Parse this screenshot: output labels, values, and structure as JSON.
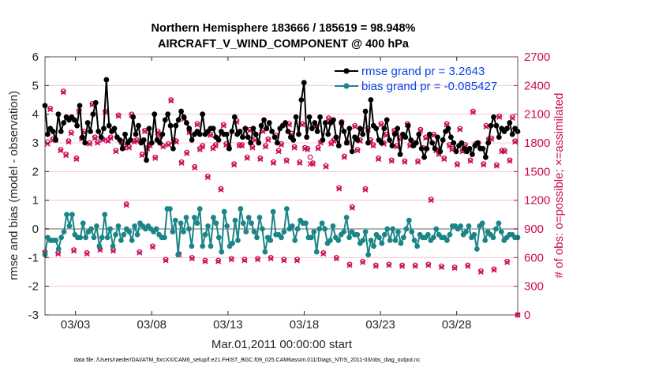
{
  "chart_data": {
    "type": "line",
    "title": "Northern Hemisphere 183666 / 185619 = 98.948%",
    "subtitle": "AIRCRAFT_V_WIND_COMPONENT @ 400 hPa",
    "xlabel": "Mar.01,2011 00:00:00 start",
    "ylabel": "rmse and bias (model - observation)",
    "y2label": "# of obs: o=possible; ×=assimilated",
    "xlim": [
      1.0,
      32.0
    ],
    "ylim": [
      -3,
      6
    ],
    "y2lim": [
      0,
      2700
    ],
    "xticks": [
      3,
      8,
      13,
      18,
      23,
      28
    ],
    "xtick_labels": [
      "03/03",
      "03/08",
      "03/13",
      "03/18",
      "03/23",
      "03/28"
    ],
    "yticks": [
      -3,
      -2,
      -1,
      0,
      1,
      2,
      3,
      4,
      5,
      6
    ],
    "ytick_labels": [
      "-3",
      "-2",
      "-1",
      "0",
      "1",
      "2",
      "3",
      "4",
      "5",
      "6"
    ],
    "y2ticks": [
      0,
      300,
      600,
      900,
      1200,
      1500,
      1800,
      2100,
      2400,
      2700
    ],
    "y2tick_labels": [
      "0",
      "300",
      "600",
      "900",
      "1200",
      "1500",
      "1800",
      "2100",
      "2400",
      "2700"
    ],
    "legend_position": "top-right",
    "series": [
      {
        "name": "rmse grand pr = 3.2643",
        "color": "#000000",
        "axis": "left",
        "values": [
          4.3,
          3.3,
          3.5,
          3.4,
          3.1,
          4.0,
          3.4,
          3.7,
          3.9,
          3.8,
          3.9,
          3.8,
          3.6,
          4.3,
          3.2,
          3.0,
          3.7,
          3.4,
          4.0,
          4.4,
          3.4,
          3.2,
          3.5,
          5.2,
          3.6,
          3.4,
          3.5,
          3.2,
          3.1,
          2.8,
          3.3,
          3.0,
          3.1,
          3.9,
          3.3,
          3.6,
          3.0,
          3.1,
          2.4,
          3.5,
          3.0,
          4.0,
          3.1,
          3.0,
          3.3,
          3.8,
          4.0,
          3.6,
          2.8,
          3.6,
          3.8,
          4.1,
          3.9,
          3.7,
          3.5,
          3.1,
          3.3,
          3.4,
          3.3,
          4.0,
          3.3,
          3.4,
          3.5,
          3.5,
          3.2,
          3.1,
          3.4,
          3.3,
          3.3,
          2.8,
          3.4,
          3.9,
          3.3,
          3.4,
          3.2,
          3.5,
          3.2,
          3.0,
          3.5,
          3.3,
          3.0,
          3.6,
          3.8,
          3.5,
          3.7,
          3.4,
          3.2,
          3.0,
          3.5,
          3.6,
          3.7,
          3.4,
          3.2,
          3.1,
          3.9,
          3.3,
          4.5,
          5.1,
          3.2,
          3.9,
          3.5,
          3.7,
          3.4,
          3.9,
          3.1,
          3.7,
          3.3,
          3.7,
          3.8,
          3.2,
          2.9,
          3.7,
          3.4,
          3.0,
          3.5,
          2.7,
          3.2,
          3.1,
          3.5,
          3.3,
          4.1,
          3.0,
          4.5,
          3.6,
          3.5,
          3.1,
          3.0,
          3.5,
          3.8,
          3.1,
          2.9,
          3.3,
          3.5,
          2.6,
          3.3,
          3.2,
          3.6,
          3.1,
          2.9,
          3.0,
          3.3,
          2.8,
          2.5,
          2.8,
          3.3,
          3.0,
          2.8,
          3.2,
          2.7,
          3.1,
          3.4,
          3.5,
          3.2,
          3.0,
          2.7,
          2.9,
          3.0,
          2.8,
          2.7,
          2.8,
          2.6,
          2.9,
          3.0,
          2.8,
          2.8,
          2.5,
          3.0,
          3.6,
          3.9,
          3.6,
          3.2,
          3.5,
          3.4,
          3.5,
          3.7,
          3.3,
          3.5,
          3.4
        ]
      },
      {
        "name": "bias grand pr = -0.085427",
        "color": "#1a8587",
        "axis": "left",
        "values": [
          -0.9,
          -0.3,
          -0.4,
          -0.4,
          -0.4,
          -0.7,
          -0.3,
          -0.1,
          0.5,
          0.1,
          0.5,
          -0.2,
          -0.3,
          -0.3,
          0.2,
          -0.3,
          -0.1,
          0.0,
          -0.3,
          0.1,
          -0.6,
          -0.3,
          0.5,
          -0.3,
          0.0,
          -0.6,
          -0.2,
          0.1,
          -0.4,
          -0.2,
          0.0,
          -0.1,
          -0.4,
          0.1,
          -0.2,
          0.2,
          0.1,
          0.0,
          0.1,
          0.0,
          -0.1,
          0.0,
          -0.2,
          -0.3,
          -0.3,
          0.7,
          0.7,
          -0.1,
          0.3,
          -0.9,
          0.2,
          -0.1,
          0.4,
          0.0,
          -0.6,
          0.4,
          0.2,
          0.7,
          -0.6,
          -0.2,
          0.1,
          -0.6,
          0.4,
          0.2,
          -0.3,
          -0.8,
          0.6,
          0.1,
          -0.6,
          -0.5,
          0.3,
          -0.4,
          0.7,
          0.2,
          -0.1,
          0.4,
          0.2,
          -0.1,
          -0.3,
          0.4,
          0.0,
          -0.8,
          -0.3,
          -0.4,
          0.6,
          -0.2,
          -0.2,
          -0.3,
          -0.1,
          0.7,
          0.0,
          0.1,
          -0.4,
          0.0,
          0.3,
          0.2,
          0.2,
          -0.3,
          -0.3,
          -0.1,
          -0.8,
          0.0,
          0.2,
          0.0,
          -0.5,
          -0.4,
          0.1,
          -0.3,
          -0.4,
          -0.2,
          -0.1,
          0.4,
          -0.3,
          -0.1,
          -0.2,
          -0.2,
          -0.5,
          -0.4,
          -0.1,
          -0.9,
          -0.4,
          -0.6,
          -0.2,
          -0.3,
          -0.5,
          -0.2,
          0.0,
          -0.4,
          0.0,
          -0.4,
          -0.1,
          -0.5,
          -0.3,
          0.0,
          0.3,
          -0.1,
          -0.4,
          -0.6,
          -0.2,
          -0.3,
          -0.3,
          -0.2,
          -0.4,
          -0.3,
          0.0,
          -0.2,
          -0.3,
          -0.3,
          -0.4,
          -0.2,
          0.1,
          0.1,
          0.0,
          0.1,
          -0.2,
          -0.1,
          0.1,
          -0.3,
          -0.2,
          -0.7,
          0.1,
          0.2,
          -0.4,
          -0.1,
          -0.2,
          -0.3,
          0.0,
          0.2,
          -0.1,
          -0.4,
          -0.3,
          -0.2,
          -0.2,
          -0.3,
          -0.3
        ]
      },
      {
        "name": "possible",
        "color": "#cc0a55",
        "axis": "right",
        "values": [
          660,
          1810,
          2160,
          1840,
          1840,
          650,
          1730,
          2340,
          1680,
          1820,
          1910,
          680,
          1640,
          2140,
          1850,
          1920,
          650,
          1800,
          2210,
          1860,
          1810,
          690,
          1840,
          2130,
          1830,
          1860,
          680,
          1720,
          2090,
          1820,
          1760,
          1160,
          1760,
          2100,
          1820,
          1830,
          660,
          1680,
          1930,
          1750,
          1780,
          720,
          1650,
          1920,
          1880,
          1770,
          580,
          1790,
          2250,
          1830,
          1820,
          640,
          1600,
          2060,
          1700,
          1920,
          600,
          1550,
          2000,
          1740,
          1770,
          570,
          1450,
          1890,
          1750,
          1780,
          570,
          1320,
          1990,
          1790,
          1760,
          590,
          1580,
          2030,
          1780,
          1780,
          580,
          1650,
          1940,
          1760,
          1840,
          590,
          1640,
          1930,
          1770,
          1840,
          600,
          1600,
          1880,
          1720,
          1790,
          580,
          1620,
          2000,
          1900,
          1760,
          580,
          1600,
          2000,
          1750,
          1740,
          1650,
          1590,
          1980,
          1750,
          1810,
          650,
          1560,
          2060,
          1800,
          1830,
          600,
          1330,
          2020,
          1660,
          1810,
          530,
          1130,
          1980,
          1730,
          1830,
          560,
          1320,
          1950,
          1830,
          1780,
          520,
          1640,
          2000,
          1800,
          1890,
          530,
          1620,
          1930,
          1770,
          1850,
          520,
          1610,
          2000,
          1780,
          1810,
          520,
          1610,
          1940,
          1750,
          1860,
          530,
          1210,
          1890,
          1730,
          1690,
          510,
          1640,
          2000,
          1780,
          1740,
          500,
          1580,
          1950,
          1720,
          1780,
          520,
          1620,
          2130,
          1790,
          1800,
          460,
          1580,
          1980,
          1840,
          1850,
          480,
          1570,
          2080,
          1720,
          1720,
          560,
          1620,
          2070,
          1820,
          0
        ]
      },
      {
        "name": "assimilated",
        "color": "#cc0a55",
        "axis": "right",
        "values": [
          650,
          1790,
          2150,
          1830,
          1830,
          640,
          1720,
          2330,
          1670,
          1810,
          1900,
          670,
          1630,
          2130,
          1840,
          1910,
          640,
          1790,
          2200,
          1850,
          1800,
          680,
          1830,
          2120,
          1820,
          1850,
          670,
          1710,
          2080,
          1810,
          1750,
          1150,
          1750,
          2090,
          1810,
          1820,
          650,
          1670,
          1920,
          1740,
          1770,
          710,
          1640,
          1910,
          1870,
          1760,
          570,
          1780,
          2240,
          1820,
          1810,
          630,
          1590,
          2050,
          1690,
          1910,
          590,
          1540,
          1990,
          1730,
          1760,
          560,
          1440,
          1880,
          1740,
          1770,
          560,
          1310,
          1980,
          1780,
          1750,
          580,
          1570,
          2020,
          1770,
          1770,
          570,
          1640,
          1930,
          1750,
          1830,
          580,
          1630,
          1920,
          1760,
          1830,
          590,
          1590,
          1870,
          1710,
          1780,
          570,
          1610,
          1990,
          1890,
          1750,
          570,
          1590,
          1990,
          1740,
          1730,
          1580,
          1580,
          1970,
          1740,
          1800,
          640,
          1550,
          2050,
          1790,
          1820,
          590,
          1320,
          2010,
          1650,
          1800,
          520,
          1120,
          1970,
          1720,
          1820,
          550,
          1310,
          1940,
          1820,
          1770,
          510,
          1630,
          1990,
          1790,
          1880,
          520,
          1610,
          1920,
          1760,
          1840,
          510,
          1600,
          1990,
          1770,
          1800,
          510,
          1600,
          1930,
          1740,
          1850,
          520,
          1200,
          1880,
          1720,
          1680,
          500,
          1630,
          1990,
          1770,
          1730,
          490,
          1570,
          1940,
          1710,
          1770,
          510,
          1610,
          2120,
          1780,
          1790,
          450,
          1570,
          1970,
          1830,
          1840,
          470,
          1560,
          2070,
          1710,
          1710,
          550,
          1610,
          2060,
          1810,
          0
        ]
      }
    ]
  },
  "colors": {
    "rmse": "#000000",
    "bias": "#1a8587",
    "obs": "#cc0a55",
    "legend_text": "#0a45e6",
    "zero_line": "#b3b3b3"
  },
  "footer": "data file: /Users/raeder/DAI/ATM_forcXX/CAM6_setup/f.e21.FHIST_BGC.f09_025.CAM6assim.011/Diags_NTrS_2011-03/obs_diag_output.nc"
}
